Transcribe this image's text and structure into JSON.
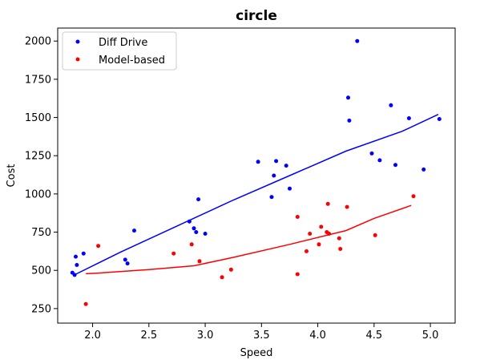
{
  "chart_data": {
    "type": "scatter",
    "title": "circle",
    "xlabel": "Speed",
    "ylabel": "Cost",
    "xlim": [
      1.69,
      5.22
    ],
    "ylim": [
      155,
      2085
    ],
    "xticks": [
      2.0,
      2.5,
      3.0,
      3.5,
      4.0,
      4.5,
      5.0
    ],
    "xtick_labels": [
      "2.0",
      "2.5",
      "3.0",
      "3.5",
      "4.0",
      "4.5",
      "5.0"
    ],
    "yticks": [
      250,
      500,
      750,
      1000,
      1250,
      1500,
      1750,
      2000
    ],
    "ytick_labels": [
      "250",
      "500",
      "750",
      "1000",
      "1250",
      "1500",
      "1750",
      "2000"
    ],
    "grid": false,
    "legend_position": "top-left",
    "series": [
      {
        "name": "Diff Drive",
        "color": "#0000ff",
        "points": [
          [
            1.82,
            485
          ],
          [
            1.84,
            470
          ],
          [
            1.85,
            590
          ],
          [
            1.86,
            535
          ],
          [
            1.92,
            610
          ],
          [
            2.29,
            570
          ],
          [
            2.31,
            545
          ],
          [
            2.37,
            760
          ],
          [
            2.86,
            820
          ],
          [
            2.9,
            775
          ],
          [
            2.92,
            750
          ],
          [
            2.94,
            965
          ],
          [
            3.0,
            740
          ],
          [
            3.47,
            1210
          ],
          [
            3.59,
            980
          ],
          [
            3.61,
            1120
          ],
          [
            3.63,
            1215
          ],
          [
            3.72,
            1185
          ],
          [
            3.75,
            1035
          ],
          [
            4.27,
            1630
          ],
          [
            4.28,
            1480
          ],
          [
            4.35,
            2000
          ],
          [
            4.48,
            1265
          ],
          [
            4.55,
            1220
          ],
          [
            4.65,
            1580
          ],
          [
            4.69,
            1190
          ],
          [
            4.81,
            1495
          ],
          [
            4.94,
            1160
          ],
          [
            5.08,
            1490
          ]
        ],
        "fit_curve": [
          [
            1.85,
            475
          ],
          [
            2.25,
            620
          ],
          [
            2.75,
            790
          ],
          [
            3.25,
            960
          ],
          [
            3.75,
            1120
          ],
          [
            4.25,
            1280
          ],
          [
            4.75,
            1410
          ],
          [
            5.07,
            1520
          ]
        ]
      },
      {
        "name": "Model-based",
        "color": "#ff0000",
        "points": [
          [
            1.94,
            280
          ],
          [
            2.05,
            660
          ],
          [
            2.72,
            610
          ],
          [
            2.88,
            670
          ],
          [
            2.95,
            560
          ],
          [
            3.15,
            455
          ],
          [
            3.23,
            505
          ],
          [
            3.82,
            850
          ],
          [
            3.82,
            475
          ],
          [
            3.9,
            625
          ],
          [
            3.93,
            740
          ],
          [
            4.01,
            670
          ],
          [
            4.03,
            785
          ],
          [
            4.08,
            750
          ],
          [
            4.09,
            935
          ],
          [
            4.1,
            740
          ],
          [
            4.19,
            710
          ],
          [
            4.2,
            640
          ],
          [
            4.26,
            915
          ],
          [
            4.51,
            730
          ],
          [
            4.85,
            985
          ]
        ],
        "fit_curve": [
          [
            1.94,
            478
          ],
          [
            2.05,
            482
          ],
          [
            2.5,
            505
          ],
          [
            2.9,
            530
          ],
          [
            3.25,
            585
          ],
          [
            3.75,
            670
          ],
          [
            4.25,
            760
          ],
          [
            4.5,
            840
          ],
          [
            4.83,
            925
          ]
        ]
      }
    ]
  }
}
